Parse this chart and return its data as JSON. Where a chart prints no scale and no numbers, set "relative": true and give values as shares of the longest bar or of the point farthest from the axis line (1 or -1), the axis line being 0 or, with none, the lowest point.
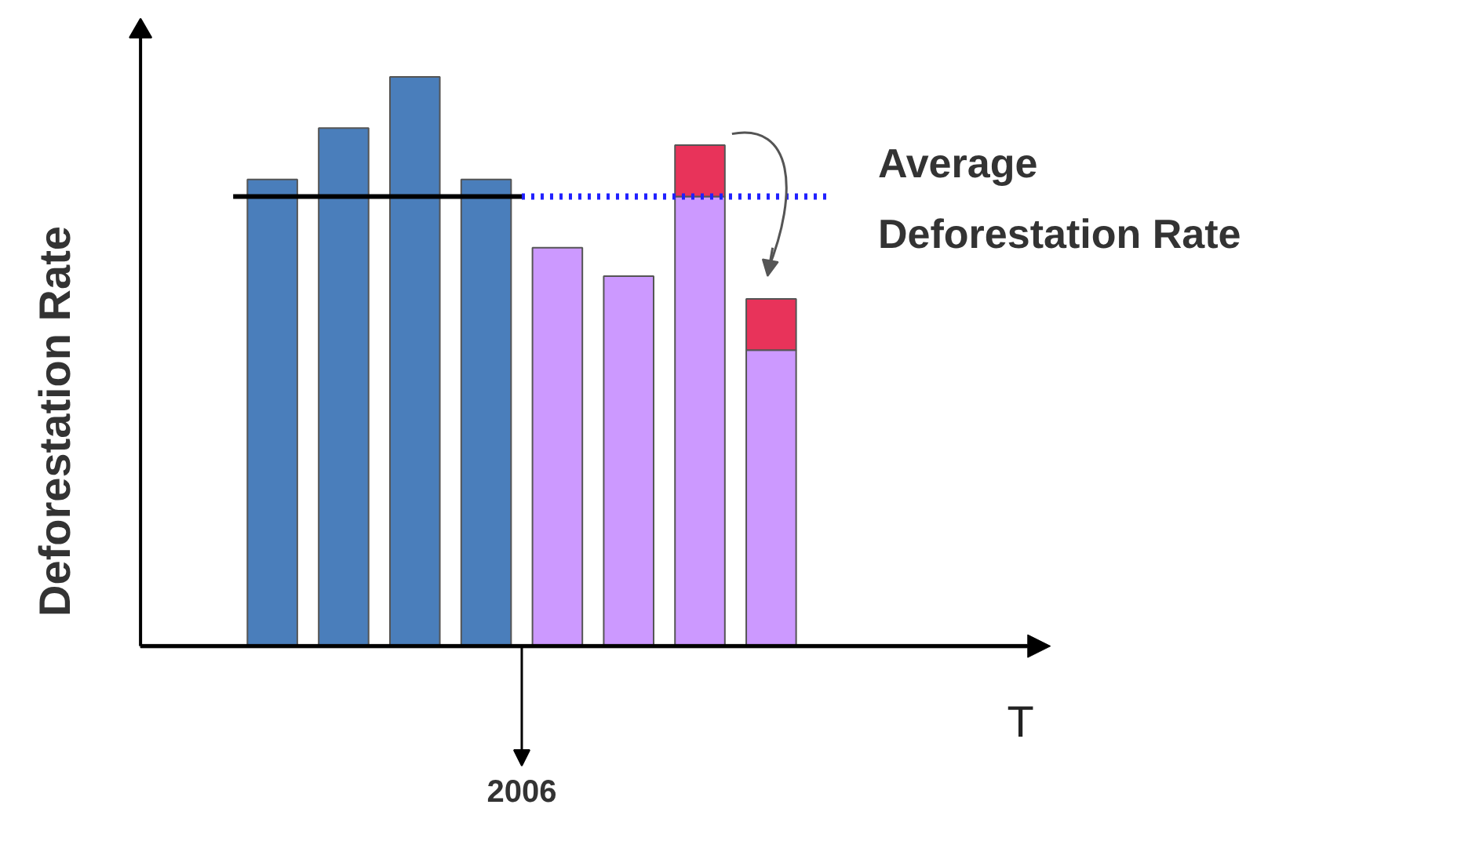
{
  "chart_data": {
    "type": "bar",
    "stacked": true,
    "relative": true,
    "categories": [
      null,
      null,
      null,
      null,
      null,
      null,
      null,
      null
    ],
    "xlabel": "T",
    "ylabel": "Deforestation Rate",
    "series": [
      {
        "colors": [
          "#4a7ebb",
          "#4a7ebb",
          "#4a7ebb",
          "#4a7ebb",
          "#cc99ff",
          "#cc99ff",
          "#cc99ff",
          "#cc99ff"
        ],
        "values": [
          0.82,
          0.91,
          1.0,
          0.82,
          0.7,
          0.65,
          0.79,
          0.52
        ]
      },
      {
        "color": "#e8335a",
        "values": [
          null,
          null,
          null,
          null,
          null,
          null,
          0.09,
          0.09
        ]
      }
    ],
    "ref_lines": [
      {
        "axis": "y",
        "value": 0.79,
        "color": "#000000",
        "line_style": "solid"
      },
      {
        "axis": "y",
        "value": 0.79,
        "color": "#2020ff",
        "line_style": "dotted",
        "label": "Average\nDeforestation Rate"
      }
    ],
    "annotations": [
      "2006"
    ],
    "grid": false
  }
}
